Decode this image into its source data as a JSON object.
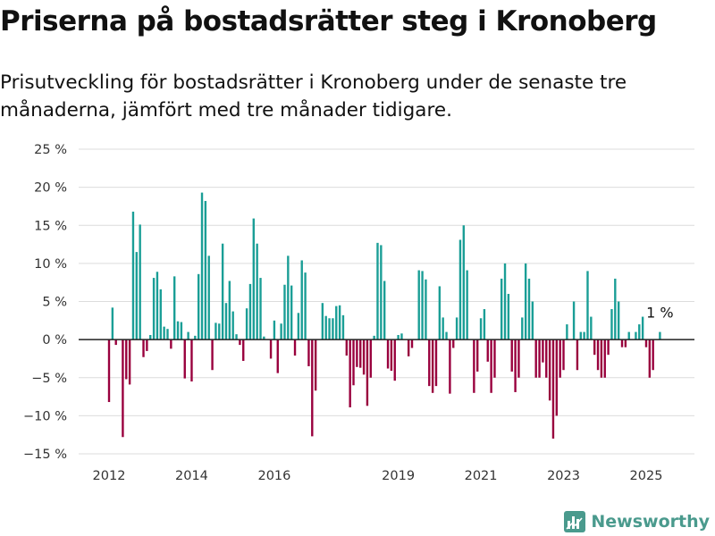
{
  "header": {
    "title": "Priserna på bostadsrätter steg i Kronoberg",
    "subtitle": "Prisutveckling för bostadsrätter i Kronoberg under de senaste tre månaderna, jämfört med tre månader tidigare."
  },
  "branding": {
    "name": "Newsworthy",
    "icon": "bar-chart-logo-icon",
    "color": "#4a9a8d"
  },
  "chart_data": {
    "type": "bar",
    "title": "",
    "xlabel": "",
    "ylabel": "",
    "ylim": [
      -15,
      25
    ],
    "yticks": [
      -15,
      -10,
      -5,
      0,
      5,
      10,
      15,
      20,
      25
    ],
    "ytick_labels": [
      "−15 %",
      "−10 %",
      "−5 %",
      "0 %",
      "5 %",
      "10 %",
      "15 %",
      "20 %",
      "25 %"
    ],
    "xticks": [
      2012,
      2014,
      2016,
      2019,
      2021,
      2023,
      2025
    ],
    "xtick_labels": [
      "2012",
      "2014",
      "2016",
      "2019",
      "2021",
      "2023",
      "2025"
    ],
    "grid": true,
    "positive_color": "#1a9e96",
    "negative_color": "#99003d",
    "annotation": {
      "text": "1 %",
      "target": "last bar"
    },
    "x_start": 2012.0,
    "x_step": 0.08333,
    "values": [
      -8.2,
      4.2,
      -0.7,
      0,
      -12.8,
      -5.2,
      -5.9,
      16.8,
      11.5,
      15.1,
      -2.3,
      -1.5,
      0.6,
      8.1,
      8.9,
      6.6,
      1.7,
      1.4,
      -1.2,
      8.3,
      2.4,
      2.3,
      -5.1,
      1.0,
      -5.5,
      0.5,
      8.6,
      19.3,
      18.2,
      11.0,
      -4.0,
      2.2,
      2.1,
      12.6,
      4.8,
      7.7,
      3.7,
      0.7,
      -0.7,
      -2.8,
      4.1,
      7.3,
      15.9,
      12.6,
      8.1,
      0.4,
      0,
      -2.5,
      2.5,
      -4.4,
      2.1,
      7.2,
      11.0,
      7.1,
      -2.1,
      3.5,
      10.4,
      8.8,
      -3.5,
      -12.7,
      -6.7,
      0,
      4.8,
      3.1,
      2.8,
      2.8,
      4.4,
      4.5,
      3.2,
      -2.1,
      -8.9,
      -6.0,
      -3.6,
      -3.7,
      -4.6,
      -8.7,
      -5.0,
      0.5,
      12.7,
      12.4,
      7.7,
      -3.8,
      -4.1,
      -5.4,
      0.6,
      0.8,
      0,
      -2.2,
      -1.1,
      0,
      9.1,
      9.0,
      7.9,
      -6.1,
      -7.0,
      -6.1,
      7.0,
      2.9,
      1.0,
      -7.1,
      -1.1,
      2.9,
      13.1,
      15.0,
      9.1,
      0,
      -7.0,
      -4.2,
      2.8,
      4.0,
      -2.9,
      -7.0,
      -5.0,
      0,
      8.0,
      10.0,
      6.0,
      -4.2,
      -6.9,
      -5.0,
      2.9,
      10.0,
      8.0,
      5.0,
      -5.0,
      -5.0,
      -3.0,
      -5.0,
      -8.0,
      -13.0,
      -10.0,
      -5.0,
      -4.0,
      2.0,
      0,
      5.0,
      -4.0,
      1.0,
      1.0,
      9.0,
      3.0,
      -2.0,
      -4.0,
      -5.0,
      -5.0,
      -2.0,
      4.0,
      8.0,
      5.0,
      -1.0,
      -1.0,
      1.0,
      0,
      1.0,
      2.0,
      3.0,
      -1.0,
      -5.0,
      -4.0,
      0,
      1.0
    ]
  }
}
